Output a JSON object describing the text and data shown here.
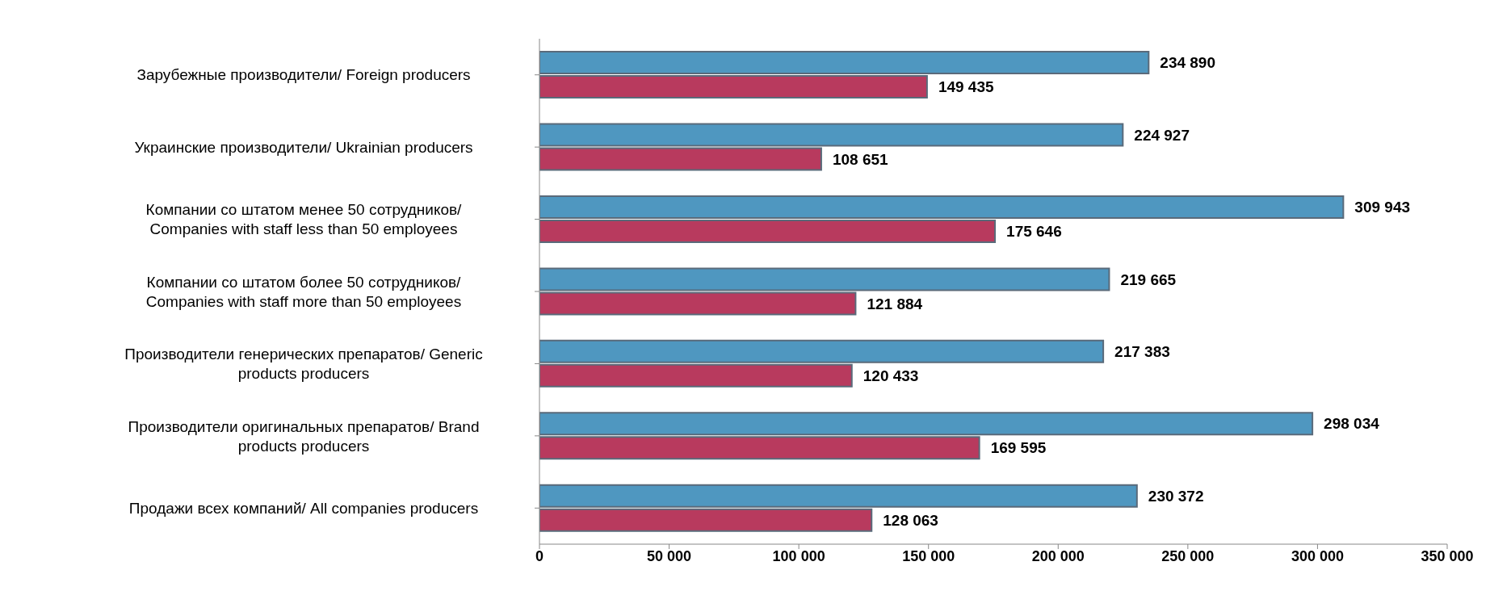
{
  "chart_data": {
    "type": "bar",
    "orientation": "horizontal",
    "categories": [
      "Зарубежные производители/ Foreign producers",
      "Украинские производители/ Ukrainian producers",
      "Компании со штатом менее 50 сотрудников/ Companies with staff less than 50 employees",
      "Компании со штатом более 50 сотрудников/ Companies with staff more than 50 employees",
      "Производители генерических препаратов/ Generic products producers",
      "Производители оригинальных препаратов/ Brand products producers",
      "Продажи всех компаний/ All companies producers"
    ],
    "series": [
      {
        "color": "#4f97c0",
        "values": [
          234890,
          224927,
          309943,
          219665,
          217383,
          298034,
          230372
        ],
        "value_labels": [
          "234 890",
          "224 927",
          "309 943",
          "219 665",
          "217 383",
          "298 034",
          "230 372"
        ]
      },
      {
        "color": "#b83a5e",
        "values": [
          149435,
          108651,
          175646,
          121884,
          120433,
          169595,
          128063
        ],
        "value_labels": [
          "149 435",
          "108 651",
          "175 646",
          "121 884",
          "120 433",
          "169 595",
          "128 063"
        ]
      }
    ],
    "xlim": [
      0,
      350000
    ],
    "xticks": [
      {
        "value": 0,
        "label": "0"
      },
      {
        "value": 50000,
        "label": "50 000"
      },
      {
        "value": 100000,
        "label": "100 000"
      },
      {
        "value": 150000,
        "label": "150 000"
      },
      {
        "value": 200000,
        "label": "200 000"
      },
      {
        "value": 250000,
        "label": "250 000"
      },
      {
        "value": 300000,
        "label": "300 000"
      },
      {
        "value": 350000,
        "label": "350 000"
      }
    ],
    "grid": false,
    "legend": false
  }
}
